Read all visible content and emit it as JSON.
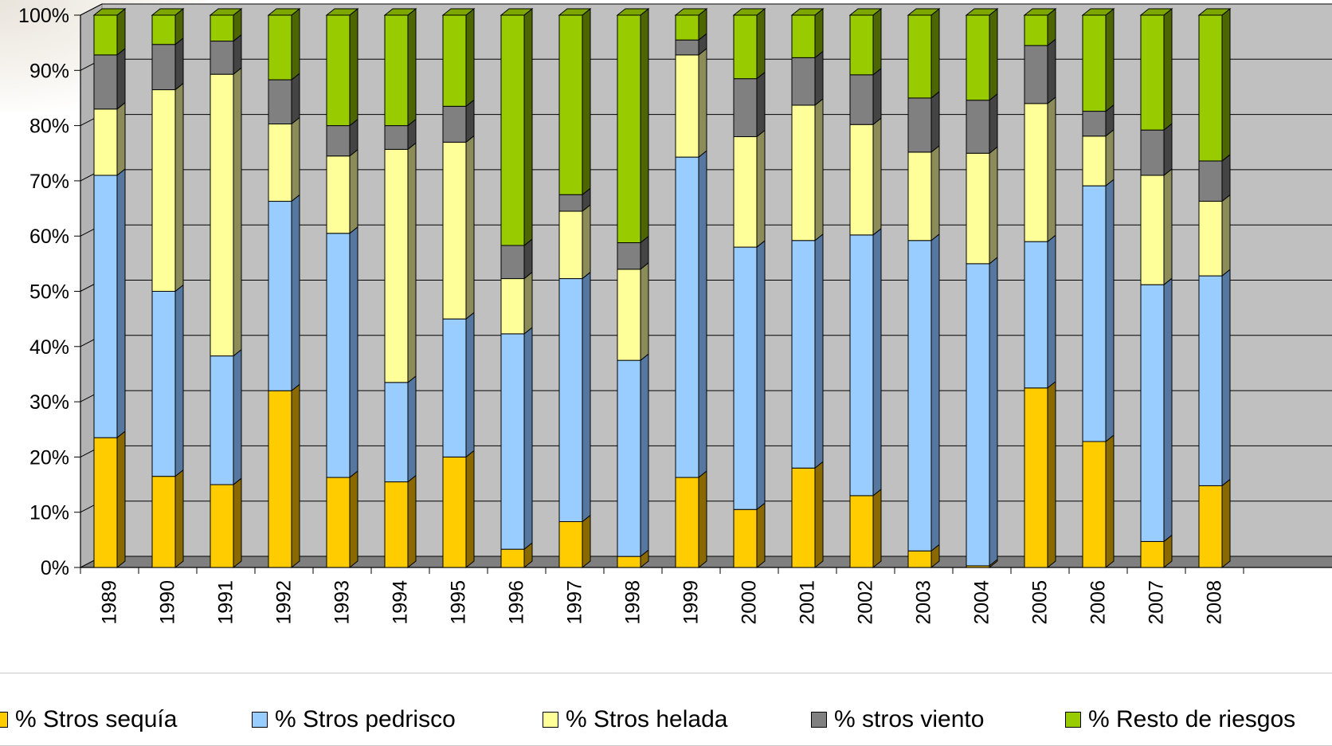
{
  "chart_data": {
    "type": "bar",
    "stacked": true,
    "stacked_percent": true,
    "three_d": true,
    "title": "",
    "xlabel": "",
    "ylabel": "",
    "ylim": [
      0,
      100
    ],
    "yticks": [
      "0%",
      "10%",
      "20%",
      "30%",
      "40%",
      "50%",
      "60%",
      "70%",
      "80%",
      "90%",
      "100%"
    ],
    "grid": true,
    "legend_position": "bottom",
    "categories": [
      "1989",
      "1990",
      "1991",
      "1992",
      "1993",
      "1994",
      "1995",
      "1996",
      "1997",
      "1998",
      "1999",
      "2000",
      "2001",
      "2002",
      "2003",
      "2004",
      "2005",
      "2006",
      "2007",
      "2008"
    ],
    "series": [
      {
        "name": "% Stros sequía",
        "color": "#ffcc00",
        "side_color": "#8a6a00",
        "values": [
          23.5,
          16.5,
          15,
          32,
          16.3,
          15.5,
          20,
          3.3,
          8.3,
          2,
          16.3,
          10.5,
          18,
          13,
          3,
          0.3,
          32.5,
          22.8,
          4.7,
          14.8
        ]
      },
      {
        "name": "% Stros pedrisco",
        "color": "#99ccff",
        "side_color": "#5577a0",
        "values": [
          47.5,
          33.5,
          23.3,
          34.3,
          44.2,
          18,
          25,
          39,
          44,
          35.5,
          58,
          47.5,
          41.2,
          47.2,
          56.2,
          54.7,
          26.5,
          46.3,
          46.5,
          38
        ]
      },
      {
        "name": "% Stros helada",
        "color": "#ffff99",
        "side_color": "#8c8c5a",
        "values": [
          12,
          36.5,
          51,
          14,
          14,
          42.2,
          32,
          10,
          12.2,
          16.5,
          18.5,
          20,
          24.5,
          20,
          16,
          20,
          25,
          9,
          19.8,
          13.5
        ]
      },
      {
        "name": "% stros viento",
        "color": "#808080",
        "side_color": "#444444",
        "values": [
          9.8,
          8.2,
          6,
          8,
          5.5,
          4.3,
          6.5,
          6,
          3,
          4.8,
          2.7,
          10.5,
          8.6,
          9,
          9.8,
          9.6,
          10.5,
          4.5,
          8.2,
          7.3
        ]
      },
      {
        "name": "% Resto de riesgos",
        "color": "#99cc00",
        "side_color": "#4d6600",
        "values": [
          7.2,
          5.3,
          4.7,
          11.7,
          20,
          20,
          16.5,
          41.7,
          32.5,
          41.2,
          4.5,
          11.5,
          7.7,
          10.8,
          15,
          15.4,
          5.5,
          17.4,
          20.8,
          26.4
        ]
      }
    ]
  }
}
